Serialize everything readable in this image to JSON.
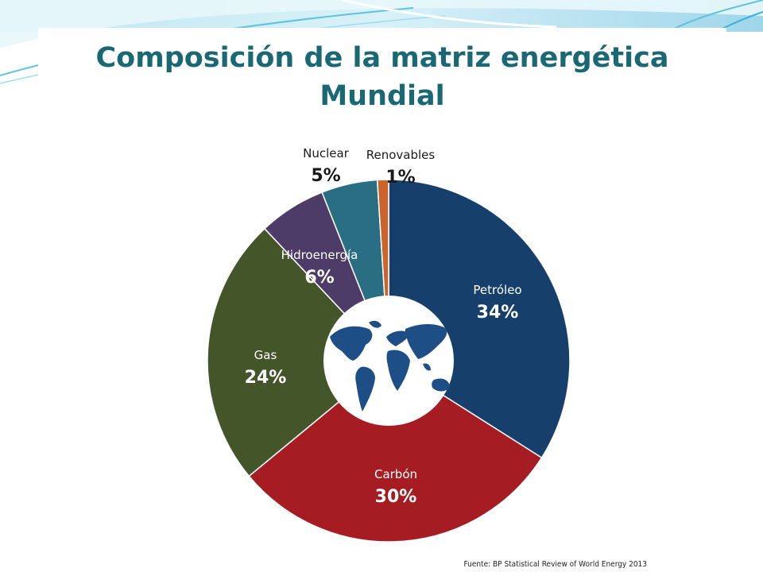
{
  "slide": {
    "title_line1": "Composición de la matriz energética",
    "title_line2": "Mundial",
    "title_color": "#1a6874",
    "source": "Fuente: BP Statistical Review of World Energy 2013"
  },
  "chart_data": {
    "type": "pie",
    "style": "donut",
    "center_image": "world-map",
    "slices": [
      {
        "label": "Petróleo",
        "value": 34,
        "display": "34%",
        "color": "#173f6b",
        "text_color": "#ffffff"
      },
      {
        "label": "Carbón",
        "value": 30,
        "display": "30%",
        "color": "#a51d22",
        "text_color": "#ffffff"
      },
      {
        "label": "Gas",
        "value": 24,
        "display": "24%",
        "color": "#45552a",
        "text_color": "#ffffff"
      },
      {
        "label": "Hidroenergía",
        "value": 6,
        "display": "6%",
        "color": "#4d3b68",
        "text_color": "#ffffff"
      },
      {
        "label": "Nuclear",
        "value": 5,
        "display": "5%",
        "color": "#2a6e83",
        "text_color": "#1a1a1a"
      },
      {
        "label": "Renovables",
        "value": 1,
        "display": "1%",
        "color": "#c9652b",
        "text_color": "#1a1a1a"
      }
    ]
  }
}
